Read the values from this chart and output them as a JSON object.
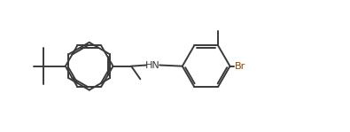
{
  "bg_color": "#ffffff",
  "line_color": "#3a3a3a",
  "br_color": "#8b4500",
  "lw": 1.4,
  "figsize": [
    3.95,
    1.49
  ],
  "dpi": 100,
  "xlim": [
    0,
    10
  ],
  "ylim": [
    0,
    3.77
  ]
}
